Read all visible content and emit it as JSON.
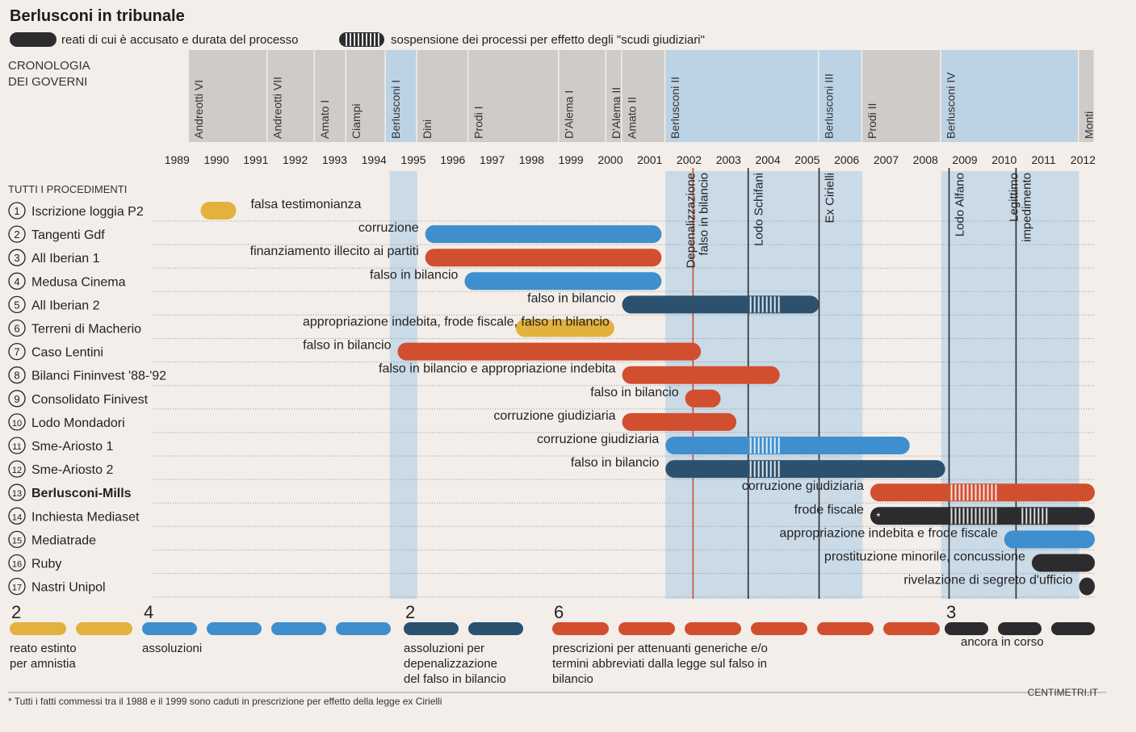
{
  "title": "Berlusconi in tribunale",
  "legend": {
    "trial": "reati di cui è accusato e durata del processo",
    "suspension": "sospensione dei processi per effetto degli \"scudi giudiziari\""
  },
  "governments_label": [
    "CRONOLOGIA",
    "DEI GOVERNI"
  ],
  "cases_label": "TUTTI I PROCEDIMENTI",
  "colors": {
    "yellow": "#e3b13e",
    "blue": "#3f8fce",
    "navy": "#2b516f",
    "red": "#d14f2f",
    "black": "#2c2c2e",
    "band": "#bcd3e6",
    "gov": "#cfcbc8",
    "vline_red": "#c9502f"
  },
  "footer": {
    "note": "* Tutti i fatti commessi tra il 1988 e il 1999 sono caduti in prescrizione per effetto della legge ex Cirielli",
    "credit": "CENTIMETRI.IT"
  },
  "chart_data": {
    "type": "timeline",
    "title": "Berlusconi in tribunale",
    "x_range": [
      1989,
      2012
    ],
    "years": [
      1989,
      1990,
      1991,
      1992,
      1993,
      1994,
      1995,
      1996,
      1997,
      1998,
      1999,
      2000,
      2001,
      2002,
      2003,
      2004,
      2005,
      2006,
      2007,
      2008,
      2009,
      2010,
      2011,
      2012
    ],
    "governments": [
      {
        "name": "Andreotti VI",
        "start": 1989.3
      },
      {
        "name": "Andreotti VII",
        "start": 1991.3
      },
      {
        "name": "Amato I",
        "start": 1992.5
      },
      {
        "name": "Ciampi",
        "start": 1993.3
      },
      {
        "name": "Berlusconi I",
        "start": 1994.3,
        "berlusconi": true
      },
      {
        "name": "Dini",
        "start": 1995.1
      },
      {
        "name": "Prodi I",
        "start": 1996.4
      },
      {
        "name": "D'Alema I",
        "start": 1998.7
      },
      {
        "name": "D'Alema II",
        "start": 1999.9
      },
      {
        "name": "Amato II",
        "start": 2000.3
      },
      {
        "name": "Berlusconi II",
        "start": 2001.4,
        "berlusconi": true
      },
      {
        "name": "Berlusconi III",
        "start": 2005.3,
        "berlusconi": true
      },
      {
        "name": "Prodi II",
        "start": 2006.4
      },
      {
        "name": "Berlusconi IV",
        "start": 2008.4,
        "berlusconi": true
      },
      {
        "name": "Monti",
        "start": 2011.9
      }
    ],
    "berlusconi_bands": [
      [
        1994.4,
        1995.1
      ],
      [
        2001.4,
        2006.4
      ],
      [
        2008.4,
        2011.9
      ]
    ],
    "laws": [
      {
        "name": "Depenalizzazione falso in bilancio",
        "year": 2002.1,
        "color": "red"
      },
      {
        "name": "Lodo Schifani",
        "year": 2003.5,
        "color": "black"
      },
      {
        "name": "Ex Cirielli",
        "year": 2005.3,
        "color": "black"
      },
      {
        "name": "Lodo Alfano",
        "year": 2008.6,
        "color": "black"
      },
      {
        "name": "Legittimo impedimento",
        "year": 2010.3,
        "color": "black"
      }
    ],
    "cases": [
      {
        "num": "1",
        "name": "Iscrizione loggia P2",
        "label": "falsa testimonianza",
        "start": 1989.6,
        "end": 1990.5,
        "color": "yellow",
        "label_after": true
      },
      {
        "num": "2",
        "name": "Tangenti Gdf",
        "label": "corruzione",
        "start": 1995.3,
        "end": 2001.3,
        "color": "blue"
      },
      {
        "num": "3",
        "name": "All Iberian 1",
        "label": "finanziamento illecito ai partiti",
        "start": 1995.3,
        "end": 2001.3,
        "color": "red"
      },
      {
        "num": "4",
        "name": "Medusa Cinema",
        "label": "falso in bilancio",
        "start": 1996.3,
        "end": 2001.3,
        "color": "blue"
      },
      {
        "num": "5",
        "name": "All Iberian 2",
        "label": "falso in bilancio",
        "start": 2000.3,
        "end": 2005.3,
        "color": "navy",
        "susp": [
          [
            2003.5,
            2004.3
          ]
        ]
      },
      {
        "num": "6",
        "name": "Terreni di Macherio",
        "label": "appropriazione indebita, frode fiscale, falso in bilancio",
        "start": 1997.6,
        "end": 2000.1,
        "color": "yellow",
        "label_over": true
      },
      {
        "num": "7",
        "name": "Caso Lentini",
        "label": "falso in bilancio",
        "start": 1994.6,
        "end": 2002.3,
        "color": "red"
      },
      {
        "num": "8",
        "name": "Bilanci Fininvest '88-'92",
        "label": "falso in bilancio e appropriazione indebita",
        "start": 2000.3,
        "end": 2004.3,
        "color": "red"
      },
      {
        "num": "9",
        "name": "Consolidato Finivest",
        "label": "falso in bilancio",
        "start": 2001.9,
        "end": 2002.8,
        "color": "red"
      },
      {
        "num": "10",
        "name": "Lodo Mondadori",
        "label": "corruzione giudiziaria",
        "start": 2000.3,
        "end": 2003.2,
        "color": "red"
      },
      {
        "num": "11",
        "name": "Sme-Ariosto 1",
        "label": "corruzione giudiziaria",
        "start": 2001.4,
        "end": 2007.6,
        "color": "blue",
        "susp": [
          [
            2003.5,
            2004.3
          ]
        ]
      },
      {
        "num": "12",
        "name": "Sme-Ariosto 2",
        "label": "falso in bilancio",
        "start": 2001.4,
        "end": 2008.5,
        "color": "navy",
        "susp": [
          [
            2003.5,
            2004.3
          ]
        ]
      },
      {
        "num": "13",
        "name": "Berlusconi-Mills",
        "label": "corruzione giudiziaria",
        "start": 2006.6,
        "end": 2012.3,
        "color": "red",
        "bold": true,
        "susp": [
          [
            2008.6,
            2009.8
          ]
        ]
      },
      {
        "num": "14",
        "name": "Inchiesta Mediaset",
        "label": "frode fiscale",
        "start": 2006.6,
        "end": 2012.3,
        "color": "black",
        "star": true,
        "susp": [
          [
            2008.6,
            2009.8
          ],
          [
            2010.4,
            2011.1
          ]
        ]
      },
      {
        "num": "15",
        "name": "Mediatrade",
        "label": "appropriazione indebita e frode fiscale",
        "start": 2010.0,
        "end": 2012.3,
        "color": "blue"
      },
      {
        "num": "16",
        "name": "Ruby",
        "label": "prostituzione minorile, concussione",
        "start": 2010.7,
        "end": 2012.3,
        "color": "black"
      },
      {
        "num": "17",
        "name": "Nastri Unipol",
        "label": "rivelazione di segreto d'ufficio",
        "start": 2011.9,
        "end": 2012.3,
        "color": "black"
      }
    ],
    "outcomes": [
      {
        "count": 2,
        "label": [
          "reato estinto",
          "per amnistia"
        ],
        "color": "yellow"
      },
      {
        "count": 4,
        "label": [
          "assoluzioni"
        ],
        "color": "blue"
      },
      {
        "count": 2,
        "label": [
          "assoluzioni per",
          "depenalizzazione",
          "del falso in bilancio"
        ],
        "color": "navy"
      },
      {
        "count": 6,
        "label": [
          "prescrizioni per attenuanti generiche e/o",
          "termini abbreviati dalla legge sul falso in",
          "bilancio"
        ],
        "color": "red"
      },
      {
        "count": 3,
        "label": [
          "ancora in corso"
        ],
        "color": "black"
      }
    ]
  }
}
